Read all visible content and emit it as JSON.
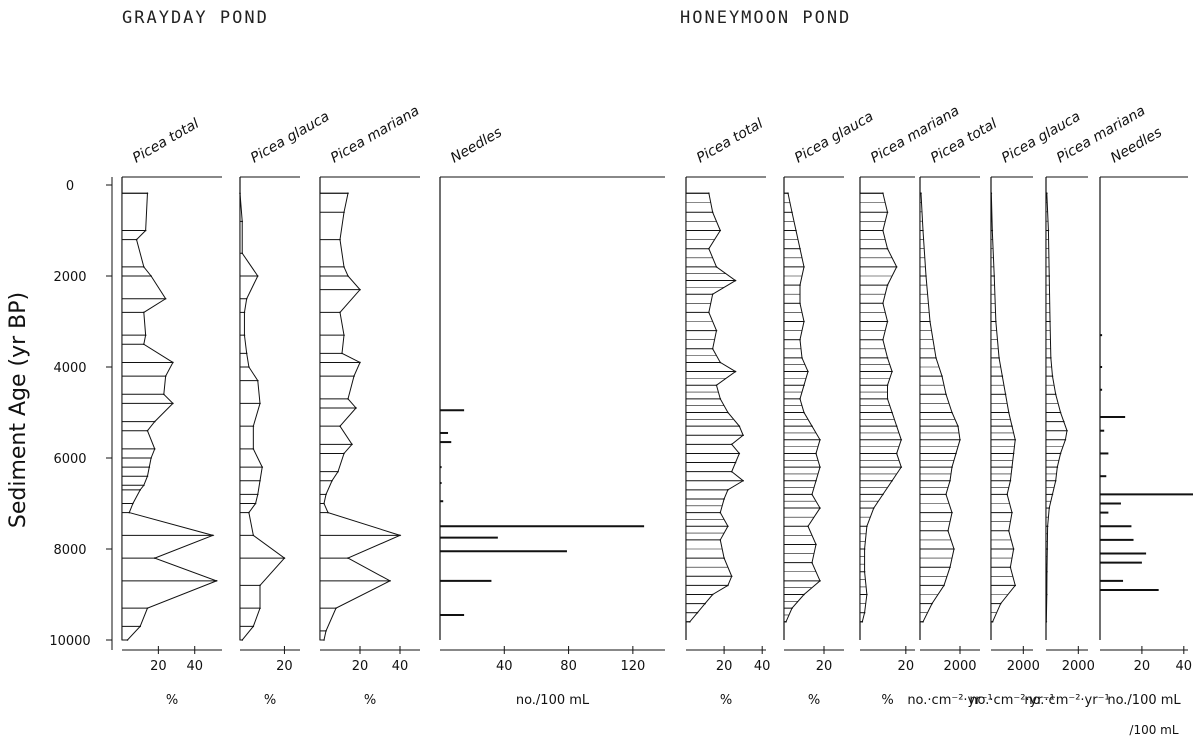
{
  "sites": {
    "grayday": "GRAYDAY POND",
    "honeymoon": "HONEYMOON POND"
  },
  "y_axis": {
    "label": "Sediment Age (yr BP)",
    "ticks": [
      0,
      2000,
      4000,
      6000,
      8000,
      10000
    ],
    "range": [
      0,
      10000
    ]
  },
  "chart_data": [
    {
      "type": "area",
      "site": "GRAYDAY POND",
      "title": "Picea total",
      "unit": "%",
      "xlim": [
        0,
        55
      ],
      "xticks": [
        20,
        40
      ],
      "tick_labels": [
        "20",
        "40"
      ],
      "style": "poly",
      "depth": [
        180,
        1000,
        1200,
        1800,
        2000,
        2500,
        2800,
        3300,
        3500,
        3900,
        4200,
        4600,
        4800,
        5200,
        5400,
        5800,
        6000,
        6200,
        6400,
        6600,
        6700,
        7000,
        7200,
        7700,
        8200,
        8700,
        9300,
        9700,
        10000
      ],
      "values": [
        14,
        13,
        8,
        12,
        16,
        24,
        12,
        13,
        12,
        28,
        24,
        23,
        28,
        18,
        14,
        18,
        16,
        15,
        14,
        12,
        10,
        6,
        4,
        50,
        18,
        52,
        14,
        10,
        3
      ]
    },
    {
      "type": "area",
      "site": "GRAYDAY POND",
      "title": "Picea glauca",
      "unit": "%",
      "xlim": [
        0,
        27
      ],
      "xticks": [
        20
      ],
      "tick_labels": [
        "20"
      ],
      "style": "poly",
      "depth": [
        180,
        800,
        1500,
        2000,
        2500,
        2800,
        3300,
        3700,
        4000,
        4300,
        4800,
        5300,
        5800,
        6200,
        6500,
        6800,
        7000,
        7200,
        7700,
        8200,
        8800,
        9300,
        9700,
        10000
      ],
      "values": [
        0,
        1,
        1,
        8,
        3,
        2,
        2,
        3,
        4,
        8,
        9,
        6,
        6,
        10,
        9,
        8,
        7,
        4,
        6,
        20,
        9,
        9,
        6,
        1
      ]
    },
    {
      "type": "area",
      "site": "GRAYDAY POND",
      "title": "Picea mariana",
      "unit": "%",
      "xlim": [
        0,
        50
      ],
      "xticks": [
        20,
        40
      ],
      "tick_labels": [
        "20",
        "40"
      ],
      "style": "poly",
      "depth": [
        180,
        600,
        1200,
        1800,
        2000,
        2300,
        2800,
        3300,
        3700,
        3900,
        4200,
        4700,
        4900,
        5300,
        5700,
        5900,
        6300,
        6500,
        6800,
        7000,
        7200,
        7700,
        8200,
        8700,
        9300,
        9800,
        10000
      ],
      "values": [
        14,
        12,
        10,
        12,
        14,
        20,
        10,
        12,
        11,
        20,
        17,
        14,
        18,
        10,
        16,
        12,
        9,
        6,
        3,
        2,
        4,
        40,
        14,
        35,
        8,
        3,
        2
      ]
    },
    {
      "type": "bar",
      "site": "GRAYDAY POND",
      "title": "Needles",
      "unit": "no./100 mL",
      "xlim": [
        0,
        140
      ],
      "xticks": [
        40,
        80,
        120
      ],
      "tick_labels": [
        "40",
        "80",
        "120"
      ],
      "depth": [
        4950,
        5450,
        5650,
        6200,
        6550,
        6950,
        7500,
        7750,
        8050,
        8700,
        9450
      ],
      "values": [
        15,
        5,
        7,
        1,
        1,
        2,
        127,
        36,
        79,
        32,
        15
      ]
    },
    {
      "type": "area",
      "site": "HONEYMOON POND",
      "title": "Picea total",
      "unit": "%",
      "xlim": [
        0,
        42
      ],
      "xticks": [
        20,
        40
      ],
      "tick_labels": [
        "20",
        "40"
      ],
      "style": "hatch",
      "depth": [
        180,
        600,
        1000,
        1400,
        1800,
        2100,
        2400,
        2800,
        3200,
        3600,
        3900,
        4100,
        4400,
        4700,
        5000,
        5300,
        5500,
        5700,
        5900,
        6100,
        6300,
        6500,
        6700,
        6900,
        7200,
        7500,
        7800,
        8200,
        8600,
        8800,
        9000,
        9200,
        9400,
        9600
      ],
      "values": [
        12,
        14,
        18,
        12,
        16,
        26,
        14,
        12,
        16,
        14,
        18,
        26,
        16,
        18,
        22,
        28,
        30,
        24,
        28,
        26,
        24,
        30,
        22,
        20,
        18,
        22,
        18,
        20,
        24,
        22,
        14,
        10,
        6,
        2
      ]
    },
    {
      "type": "area",
      "site": "HONEYMOON POND",
      "title": "Picea glauca",
      "unit": "%",
      "xlim": [
        0,
        30
      ],
      "xticks": [
        20
      ],
      "tick_labels": [
        "20"
      ],
      "style": "hatch",
      "depth": [
        180,
        600,
        1000,
        1400,
        1800,
        2200,
        2600,
        3000,
        3400,
        3800,
        4100,
        4400,
        4700,
        5000,
        5300,
        5600,
        5900,
        6200,
        6500,
        6800,
        7100,
        7500,
        7900,
        8300,
        8700,
        9000,
        9300,
        9600
      ],
      "values": [
        2,
        4,
        6,
        8,
        10,
        8,
        8,
        10,
        8,
        9,
        12,
        10,
        8,
        10,
        14,
        18,
        16,
        18,
        16,
        14,
        18,
        12,
        16,
        14,
        18,
        10,
        4,
        1
      ]
    },
    {
      "type": "area",
      "site": "HONEYMOON POND",
      "title": "Picea mariana",
      "unit": "%",
      "xlim": [
        0,
        24
      ],
      "xticks": [
        20
      ],
      "tick_labels": [
        "20"
      ],
      "style": "hatch",
      "depth": [
        180,
        600,
        1000,
        1400,
        1800,
        2200,
        2600,
        3000,
        3400,
        3800,
        4100,
        4400,
        4700,
        5000,
        5300,
        5600,
        5900,
        6200,
        6500,
        6800,
        7100,
        7500,
        8000,
        8500,
        9000,
        9400,
        9600
      ],
      "values": [
        10,
        12,
        10,
        12,
        16,
        12,
        10,
        12,
        10,
        12,
        14,
        12,
        12,
        14,
        16,
        18,
        16,
        18,
        14,
        10,
        6,
        3,
        2,
        2,
        3,
        2,
        1
      ]
    },
    {
      "type": "area",
      "site": "HONEYMOON POND",
      "title": "Picea total",
      "unit": "no.·cm⁻²·yr⁻¹",
      "xlim": [
        0,
        3000
      ],
      "xticks": [
        2000
      ],
      "tick_labels": [
        "2000"
      ],
      "style": "hatch",
      "depth": [
        180,
        1000,
        2000,
        3000,
        3800,
        4200,
        4600,
        5000,
        5300,
        5600,
        5900,
        6200,
        6500,
        6800,
        7200,
        7600,
        8000,
        8400,
        8800,
        9200,
        9600
      ],
      "values": [
        50,
        150,
        300,
        500,
        800,
        1100,
        1300,
        1600,
        1900,
        2000,
        1800,
        1600,
        1500,
        1300,
        1600,
        1400,
        1700,
        1500,
        1200,
        600,
        150
      ]
    },
    {
      "type": "area",
      "site": "HONEYMOON POND",
      "title": "Picea glauca",
      "unit": "no.·cm⁻²·yr⁻¹",
      "xlim": [
        0,
        2600
      ],
      "xticks": [
        2000
      ],
      "tick_labels": [
        "2000"
      ],
      "style": "hatch",
      "depth": [
        180,
        1000,
        2000,
        3000,
        3800,
        4200,
        4600,
        5000,
        5300,
        5600,
        5900,
        6200,
        6500,
        6800,
        7200,
        7600,
        8000,
        8400,
        8800,
        9200,
        9600
      ],
      "values": [
        20,
        80,
        200,
        300,
        500,
        700,
        900,
        1100,
        1300,
        1500,
        1400,
        1300,
        1200,
        1000,
        1300,
        1100,
        1400,
        1200,
        1500,
        600,
        100
      ]
    },
    {
      "type": "area",
      "site": "HONEYMOON POND",
      "title": "Picea mariana",
      "unit": "no.·cm⁻²·yr⁻¹",
      "xlim": [
        0,
        2600
      ],
      "xticks": [
        2000
      ],
      "tick_labels": [
        "2000"
      ],
      "style": "hatch",
      "depth": [
        180,
        1000,
        2000,
        3000,
        3800,
        4200,
        4600,
        5000,
        5200,
        5400,
        5600,
        5900,
        6200,
        6500,
        6800,
        7100,
        7500,
        8000,
        8500,
        9000,
        9600
      ],
      "values": [
        50,
        150,
        200,
        250,
        300,
        400,
        600,
        900,
        1100,
        1300,
        1200,
        900,
        700,
        600,
        400,
        200,
        100,
        80,
        60,
        50,
        20
      ]
    },
    {
      "type": "bar",
      "site": "HONEYMOON POND",
      "title": "Needles",
      "unit": "no./100 mL",
      "unit2": "/100 mL",
      "xlim": [
        0,
        42
      ],
      "xticks": [
        20,
        40
      ],
      "tick_labels": [
        "20",
        "40"
      ],
      "depth": [
        3300,
        4000,
        4500,
        5100,
        5400,
        5900,
        6400,
        6800,
        7000,
        7200,
        7500,
        7800,
        8100,
        8300,
        8700,
        8900
      ],
      "values": [
        1,
        1,
        1,
        12,
        2,
        4,
        3,
        50,
        10,
        4,
        15,
        16,
        22,
        20,
        11,
        28
      ]
    }
  ]
}
